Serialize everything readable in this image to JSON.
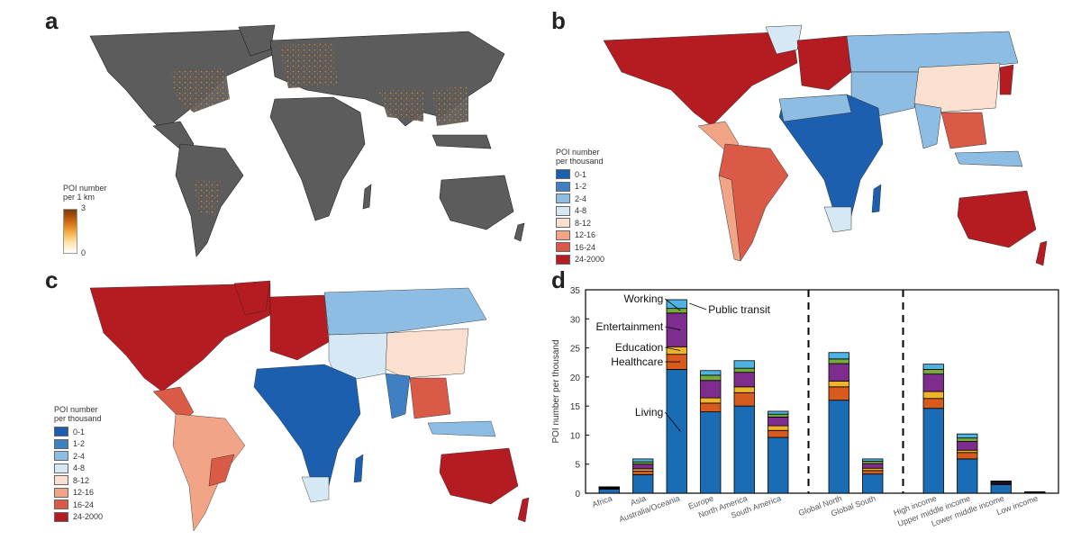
{
  "panels": {
    "a": {
      "letter": "a",
      "legend_title_line1": "POI number",
      "legend_title_line2": "per 1 km",
      "legend_max": "3",
      "legend_min": "0"
    },
    "b": {
      "letter": "b",
      "legend_title_line1": "POI number",
      "legend_title_line2": "per thousand"
    },
    "c": {
      "letter": "c",
      "legend_title_line1": "POI number",
      "legend_title_line2": "per thousand"
    },
    "d": {
      "letter": "d"
    }
  },
  "choropleth_legend": [
    {
      "label": "0-1",
      "color": "#1b5fae"
    },
    {
      "label": "1-2",
      "color": "#3f80c2"
    },
    {
      "label": "2-4",
      "color": "#8dbde2"
    },
    {
      "label": "4-8",
      "color": "#d6e8f4"
    },
    {
      "label": "8-12",
      "color": "#fbe0cf"
    },
    {
      "label": "12-16",
      "color": "#f2a487"
    },
    {
      "label": "16-24",
      "color": "#da5a48"
    },
    {
      "label": "24-2000",
      "color": "#b51c22"
    }
  ],
  "map_colors": {
    "land_gray": "#5c5c5c",
    "poi_orange": "#e08a2a"
  },
  "chart_data": {
    "type": "bar",
    "stacked": true,
    "title": "",
    "xlabel": "",
    "ylabel": "POI number per thousand",
    "ylim": [
      0,
      35
    ],
    "yticks": [
      0,
      5,
      10,
      15,
      20,
      25,
      30,
      35
    ],
    "categories": [
      "Africa",
      "Asia",
      "Australia/Oceania",
      "Europe",
      "North America",
      "South America",
      "Global North",
      "Global South",
      "High income",
      "Upper middle income",
      "Lower middle income",
      "Low income"
    ],
    "positions": [
      1,
      2,
      3,
      4,
      5,
      6,
      7.8,
      8.8,
      10.6,
      11.6,
      12.6,
      13.6
    ],
    "separators": [
      6.9,
      9.7
    ],
    "series": [
      {
        "name": "Living",
        "color": "#1a6db5",
        "values": [
          0.7,
          3.2,
          21.3,
          14.0,
          15.0,
          9.6,
          16.0,
          3.3,
          14.6,
          5.9,
          1.5,
          0.15
        ]
      },
      {
        "name": "Healthcare",
        "color": "#d85a1c",
        "values": [
          0.1,
          0.6,
          2.6,
          1.5,
          2.3,
          1.2,
          2.3,
          0.6,
          1.7,
          1.1,
          0.15,
          0.02
        ]
      },
      {
        "name": "Education",
        "color": "#eeb52a",
        "values": [
          0.05,
          0.4,
          1.3,
          0.9,
          1.0,
          0.8,
          1.0,
          0.4,
          1.2,
          0.4,
          0.08,
          0.01
        ]
      },
      {
        "name": "Entertainment",
        "color": "#7e2d8e",
        "values": [
          0.1,
          0.8,
          5.8,
          3.0,
          2.5,
          1.5,
          3.0,
          0.8,
          3.0,
          1.5,
          0.2,
          0.02
        ]
      },
      {
        "name": "Working",
        "color": "#76ab3a",
        "values": [
          0.05,
          0.4,
          0.8,
          0.9,
          0.7,
          0.5,
          0.8,
          0.4,
          0.8,
          0.6,
          0.07,
          0.01
        ]
      },
      {
        "name": "Public transit",
        "color": "#4eb3e3",
        "values": [
          0.1,
          0.5,
          1.5,
          0.8,
          1.3,
          0.5,
          1.1,
          0.4,
          0.9,
          0.7,
          0.1,
          0.02
        ]
      }
    ],
    "annotations": [
      {
        "text": "Working",
        "series": "Working",
        "bar": 2
      },
      {
        "text": "Public transit",
        "series": "Public transit",
        "bar": 2
      },
      {
        "text": "Entertainment",
        "series": "Entertainment",
        "bar": 2
      },
      {
        "text": "Education",
        "series": "Education",
        "bar": 2
      },
      {
        "text": "Healthcare",
        "series": "Healthcare",
        "bar": 2
      },
      {
        "text": "Living",
        "series": "Living",
        "bar": 2
      }
    ]
  }
}
